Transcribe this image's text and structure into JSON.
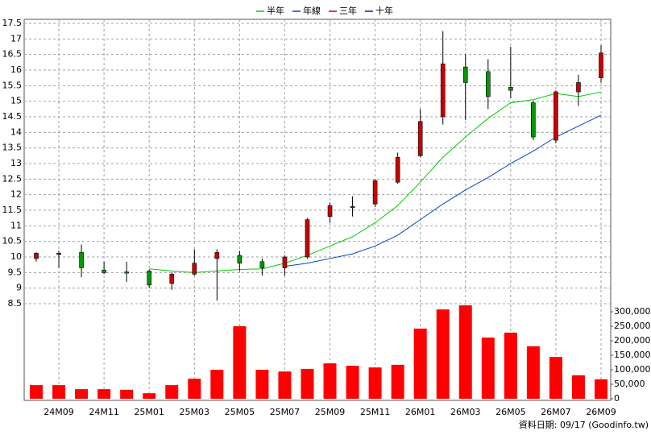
{
  "chart_data": {
    "type": "candlestick",
    "source": "資料日期: 09/17  (Goodinfo.tw)",
    "categories": [
      null,
      "24M09",
      null,
      "24M11",
      null,
      "25M01",
      null,
      "25M03",
      null,
      "25M05",
      null,
      "25M07",
      null,
      "25M09",
      null,
      "25M11",
      null,
      "26M01",
      null,
      "26M03",
      null,
      "26M05",
      null,
      "26M07",
      null,
      "26M09"
    ],
    "open": [
      9.95,
      10.1,
      10.15,
      9.58,
      9.52,
      9.55,
      9.15,
      9.45,
      9.95,
      10.05,
      9.85,
      9.65,
      10.0,
      11.3,
      11.62,
      11.7,
      12.4,
      13.25,
      14.5,
      16.1,
      15.95,
      15.45,
      14.95,
      13.75,
      15.3,
      15.75
    ],
    "high": [
      10.15,
      10.2,
      10.4,
      9.85,
      9.85,
      9.6,
      9.5,
      10.25,
      10.25,
      10.2,
      9.95,
      10.05,
      11.25,
      11.75,
      11.95,
      12.5,
      13.35,
      14.75,
      17.25,
      16.5,
      16.35,
      16.75,
      15.0,
      15.35,
      15.85,
      16.8
    ],
    "low": [
      9.85,
      9.65,
      9.35,
      9.45,
      9.2,
      9.0,
      8.95,
      9.4,
      8.6,
      9.55,
      9.4,
      9.4,
      9.95,
      11.1,
      11.3,
      11.6,
      12.35,
      13.2,
      14.25,
      14.4,
      14.75,
      15.1,
      13.75,
      13.65,
      14.85,
      15.6
    ],
    "close": [
      10.12,
      10.12,
      9.65,
      9.5,
      9.5,
      9.1,
      9.45,
      9.8,
      10.15,
      9.8,
      9.65,
      10.0,
      11.2,
      11.65,
      11.6,
      12.45,
      13.2,
      14.35,
      16.2,
      15.6,
      15.15,
      15.35,
      13.85,
      15.3,
      15.6,
      16.55
    ],
    "up_color": "#cc0000",
    "down_color": "#009900",
    "series": [
      {
        "name": "半年",
        "color": "#00cc00",
        "values": [
          null,
          null,
          null,
          null,
          null,
          9.62,
          9.55,
          9.5,
          9.55,
          9.6,
          9.62,
          9.8,
          10.05,
          10.35,
          10.65,
          11.1,
          11.65,
          12.4,
          13.2,
          13.85,
          14.45,
          14.95,
          15.05,
          15.25,
          15.15,
          15.3
        ]
      },
      {
        "name": "年線",
        "color": "#0044cc",
        "values": [
          null,
          null,
          null,
          null,
          null,
          null,
          null,
          null,
          null,
          null,
          null,
          9.7,
          9.8,
          9.95,
          10.1,
          10.35,
          10.7,
          11.2,
          11.7,
          12.15,
          12.55,
          13.0,
          13.4,
          13.85,
          14.2,
          14.55
        ]
      },
      {
        "name": "三年",
        "color": "#cc0000",
        "values": [
          null,
          null,
          null,
          null,
          null,
          null,
          null,
          null,
          null,
          null,
          null,
          null,
          null,
          null,
          null,
          null,
          null,
          null,
          null,
          null,
          null,
          null,
          null,
          null,
          null,
          null
        ]
      },
      {
        "name": "十年",
        "color": "#3300aa",
        "values": [
          null,
          null,
          null,
          null,
          null,
          null,
          null,
          null,
          null,
          null,
          null,
          null,
          null,
          null,
          null,
          null,
          null,
          null,
          null,
          null,
          null,
          null,
          null,
          null,
          null,
          null
        ]
      }
    ],
    "ylim": [
      8.5,
      17.5
    ],
    "yticks": [
      8.5,
      9,
      9.5,
      10,
      10.5,
      11,
      11.5,
      12,
      12.5,
      13,
      13.5,
      14,
      14.5,
      15,
      15.5,
      16,
      16.5,
      17,
      17.5
    ],
    "grid": true,
    "volume": {
      "color": "#ff0000",
      "values": [
        47000,
        47000,
        33000,
        33000,
        31000,
        19000,
        47000,
        69000,
        100000,
        250000,
        100000,
        94000,
        103000,
        122000,
        114000,
        108000,
        117000,
        242000,
        308000,
        322000,
        211000,
        228000,
        181000,
        144000,
        81000,
        67000
      ],
      "ylim": [
        0,
        300000
      ],
      "yticks": [
        0,
        {
          "value": 50000,
          "label": "50,000"
        },
        {
          "value": 100000,
          "label": "100,000"
        },
        {
          "value": 150000,
          "label": "150,000"
        },
        {
          "value": 200000,
          "label": "200,000"
        },
        {
          "value": 250000,
          "label": "250,000"
        },
        {
          "value": 300000,
          "label": "300,000"
        }
      ]
    }
  }
}
